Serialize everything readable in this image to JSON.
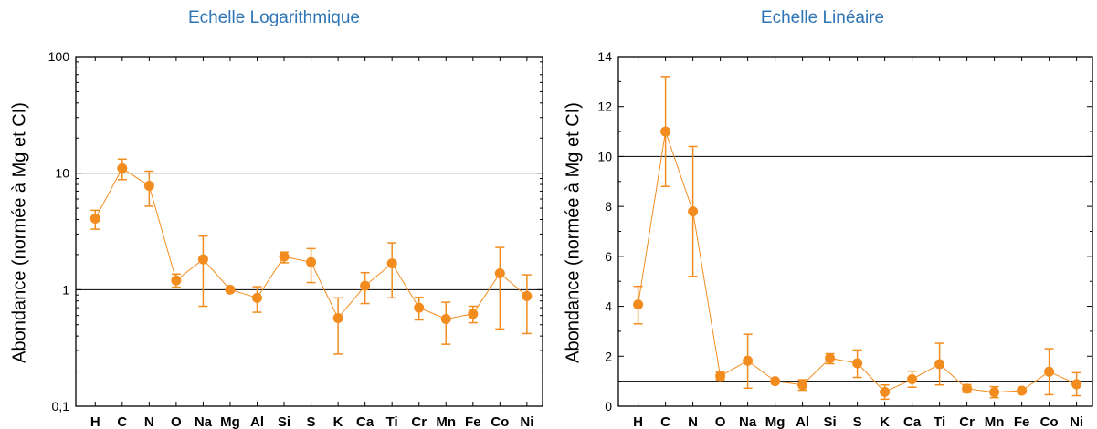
{
  "colors": {
    "series": "#f28c1e",
    "title": "#2e75b6",
    "axis": "#000000"
  },
  "chart_data": [
    {
      "type": "scatter",
      "title": "Echelle Logarithmique",
      "ylabel": "Abondance (normée à Mg et CI)",
      "xlabel": "",
      "categories": [
        "H",
        "C",
        "N",
        "O",
        "Na",
        "Mg",
        "Al",
        "Si",
        "S",
        "K",
        "Ca",
        "Ti",
        "Cr",
        "Mn",
        "Fe",
        "Co",
        "Ni"
      ],
      "yscale": "log",
      "ylim": [
        0.1,
        100
      ],
      "yticks": [
        0.1,
        1,
        10,
        100
      ],
      "ytick_labels": [
        "0,1",
        "1",
        "10",
        "100"
      ],
      "reference_lines": [
        1,
        10
      ],
      "grid": false,
      "legend": "none",
      "series": [
        {
          "values": [
            4.07,
            11.0,
            7.8,
            1.2,
            1.82,
            1.0,
            0.85,
            1.92,
            1.72,
            0.57,
            1.08,
            1.68,
            0.7,
            0.56,
            0.62,
            1.38,
            0.88
          ],
          "err_low": [
            3.3,
            8.8,
            5.2,
            1.05,
            0.72,
            0.96,
            0.64,
            1.7,
            1.15,
            0.28,
            0.76,
            0.85,
            0.55,
            0.34,
            0.52,
            0.46,
            0.42
          ],
          "err_high": [
            4.8,
            13.2,
            10.4,
            1.36,
            2.88,
            1.04,
            1.06,
            2.1,
            2.25,
            0.85,
            1.4,
            2.52,
            0.86,
            0.78,
            0.72,
            2.3,
            1.34
          ]
        }
      ]
    },
    {
      "type": "scatter",
      "title": "Echelle Linéaire",
      "ylabel": "Abondance (normée à Mg et CI)",
      "xlabel": "",
      "categories": [
        "H",
        "C",
        "N",
        "O",
        "Na",
        "Mg",
        "Al",
        "Si",
        "S",
        "K",
        "Ca",
        "Ti",
        "Cr",
        "Mn",
        "Fe",
        "Co",
        "Ni"
      ],
      "yscale": "linear",
      "ylim": [
        0,
        14
      ],
      "yticks": [
        0,
        2,
        4,
        6,
        8,
        10,
        12,
        14
      ],
      "ytick_labels": [
        "0",
        "2",
        "4",
        "6",
        "8",
        "10",
        "12",
        "14"
      ],
      "reference_lines": [
        1,
        10
      ],
      "grid": false,
      "legend": "none",
      "series": [
        {
          "values": [
            4.07,
            11.0,
            7.8,
            1.2,
            1.82,
            1.0,
            0.85,
            1.92,
            1.72,
            0.57,
            1.08,
            1.68,
            0.7,
            0.56,
            0.62,
            1.38,
            0.88
          ],
          "err_low": [
            3.3,
            8.8,
            5.2,
            1.05,
            0.72,
            0.96,
            0.64,
            1.7,
            1.15,
            0.28,
            0.76,
            0.85,
            0.55,
            0.34,
            0.52,
            0.46,
            0.42
          ],
          "err_high": [
            4.8,
            13.2,
            10.4,
            1.36,
            2.88,
            1.04,
            1.06,
            2.1,
            2.25,
            0.85,
            1.4,
            2.52,
            0.86,
            0.78,
            0.72,
            2.3,
            1.34
          ]
        }
      ]
    }
  ]
}
